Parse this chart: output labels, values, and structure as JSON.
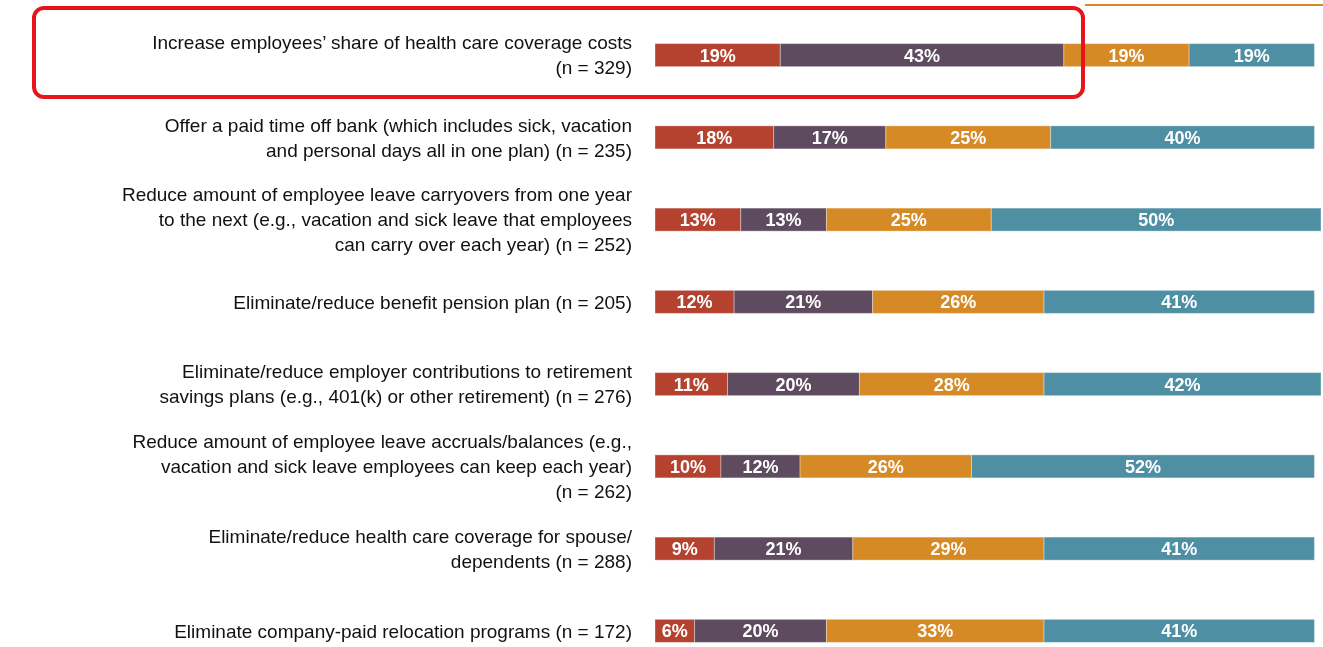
{
  "chart_data": {
    "type": "bar",
    "orientation": "horizontal",
    "stacked": true,
    "categories": [
      "Increase employees’ share of health care coverage costs (n = 329)",
      "Offer a paid time off bank (which includes sick, vacation and personal days all in one plan) (n = 235)",
      "Reduce amount of employee leave carryovers from one year to the next (e.g., vacation and sick leave that employees can carry over each year) (n = 252)",
      "Eliminate/reduce benefit pension plan (n = 205)",
      "Eliminate/reduce employer contributions to retirement savings plans (e.g., 401(k) or other retirement) (n = 276)",
      "Reduce amount of employee leave accruals/balances (e.g., vacation and sick leave employees can keep each year) (n = 262)",
      "Eliminate/reduce health care coverage for spouse/ dependents (n = 288)",
      "Eliminate company-paid relocation programs (n = 172)"
    ],
    "series": [
      {
        "color": "#b5412f",
        "values": [
          19,
          18,
          13,
          12,
          11,
          10,
          9,
          6
        ],
        "value_labels": [
          "19%",
          "18%",
          "13%",
          "12%",
          "11%",
          "10%",
          "9%",
          "6%"
        ]
      },
      {
        "color": "#5e4b5f",
        "values": [
          43,
          17,
          13,
          21,
          20,
          12,
          21,
          20
        ],
        "value_labels": [
          "43%",
          "17%",
          "13%",
          "21%",
          "20%",
          "12%",
          "21%",
          "20%"
        ]
      },
      {
        "color": "#d68a26",
        "values": [
          19,
          25,
          25,
          26,
          28,
          26,
          29,
          33
        ],
        "value_labels": [
          "19%",
          "25%",
          "25%",
          "26%",
          "28%",
          "26%",
          "29%",
          "33%"
        ]
      },
      {
        "color": "#4e8fa3",
        "values": [
          19,
          40,
          50,
          41,
          42,
          52,
          41,
          41
        ],
        "value_labels": [
          "19%",
          "40%",
          "50%",
          "41%",
          "42%",
          "52%",
          "41%",
          "41%"
        ]
      }
    ]
  }
}
